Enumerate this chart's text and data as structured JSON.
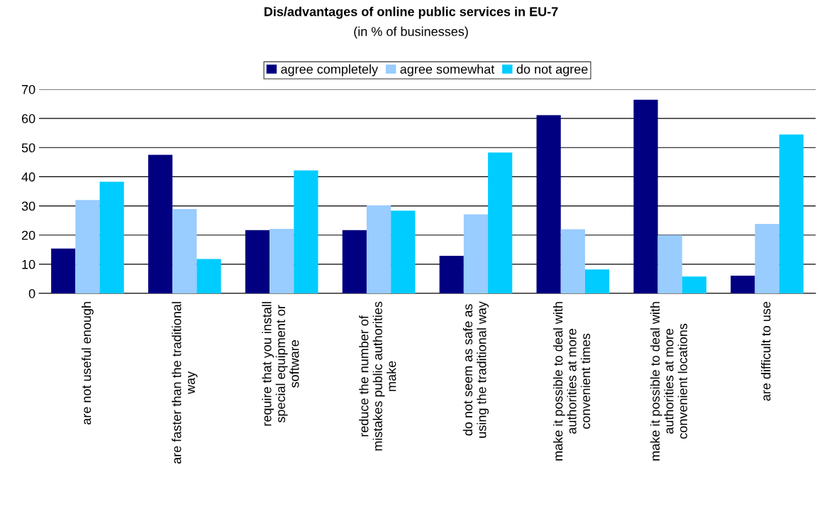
{
  "chart_data": {
    "type": "bar",
    "title": "Dis/advantages of online public services in EU-7",
    "subtitle": "(in % of businesses)",
    "categories": [
      "are not useful enough",
      "are faster than the traditional\nway",
      "require that you install\nspecial equipment or\nsoftware",
      "reduce the number of\nmistakes public authorities\nmake",
      "do not seem as safe as\nusing the traditional way",
      "make it possible to deal with\nauthorities at more\nconvenient times",
      "make it possible to deal with\nauthorities at more\nconvenient locations",
      "are difficult to use"
    ],
    "series": [
      {
        "name": "agree completely",
        "color": "#000080",
        "values": [
          15.4,
          47.5,
          21.7,
          21.7,
          12.9,
          61.1,
          66.4,
          6.1
        ]
      },
      {
        "name": "agree somewhat",
        "color": "#99ccff",
        "values": [
          32.0,
          28.9,
          22.1,
          30.2,
          27.1,
          22.0,
          20.0,
          23.8
        ]
      },
      {
        "name": "do not agree",
        "color": "#00ccff",
        "values": [
          38.3,
          11.8,
          42.2,
          28.4,
          48.3,
          8.2,
          5.8,
          54.5
        ]
      }
    ],
    "ylim": [
      0,
      70
    ],
    "yticks": [
      0,
      10,
      20,
      30,
      40,
      50,
      60,
      70
    ],
    "grid": "y",
    "legend": "top"
  }
}
